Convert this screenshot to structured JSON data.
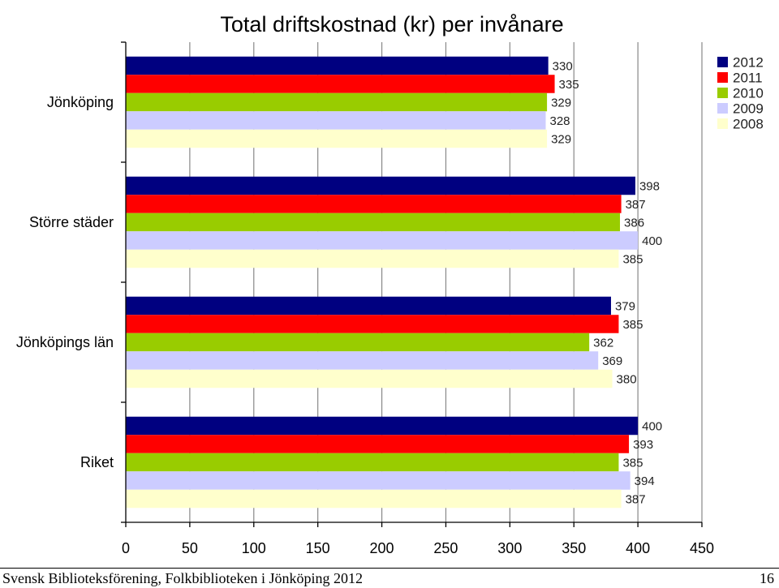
{
  "chart_data": {
    "type": "bar",
    "orientation": "horizontal",
    "title": "Total driftskostnad (kr) per invånare",
    "categories": [
      "Jönköping",
      "Större städer",
      "Jönköpings län",
      "Riket"
    ],
    "series": [
      {
        "name": "2012",
        "color": "#000080",
        "values": [
          330,
          398,
          379,
          400
        ]
      },
      {
        "name": "2011",
        "color": "#ff0000",
        "values": [
          335,
          387,
          385,
          393
        ]
      },
      {
        "name": "2010",
        "color": "#99cc00",
        "values": [
          329,
          386,
          362,
          385
        ]
      },
      {
        "name": "2009",
        "color": "#ccccff",
        "values": [
          328,
          400,
          369,
          394
        ]
      },
      {
        "name": "2008",
        "color": "#ffffcc",
        "values": [
          329,
          385,
          380,
          387
        ]
      }
    ],
    "xlim": [
      0,
      450
    ],
    "xticks": [
      0,
      50,
      100,
      150,
      200,
      250,
      300,
      350,
      400,
      450
    ],
    "grid": "vertical",
    "legend_position": "top-right",
    "data_labels": true
  },
  "footer": {
    "left": "Svensk Biblioteksförening, Folkbiblioteken i Jönköping 2012",
    "right": "16"
  }
}
